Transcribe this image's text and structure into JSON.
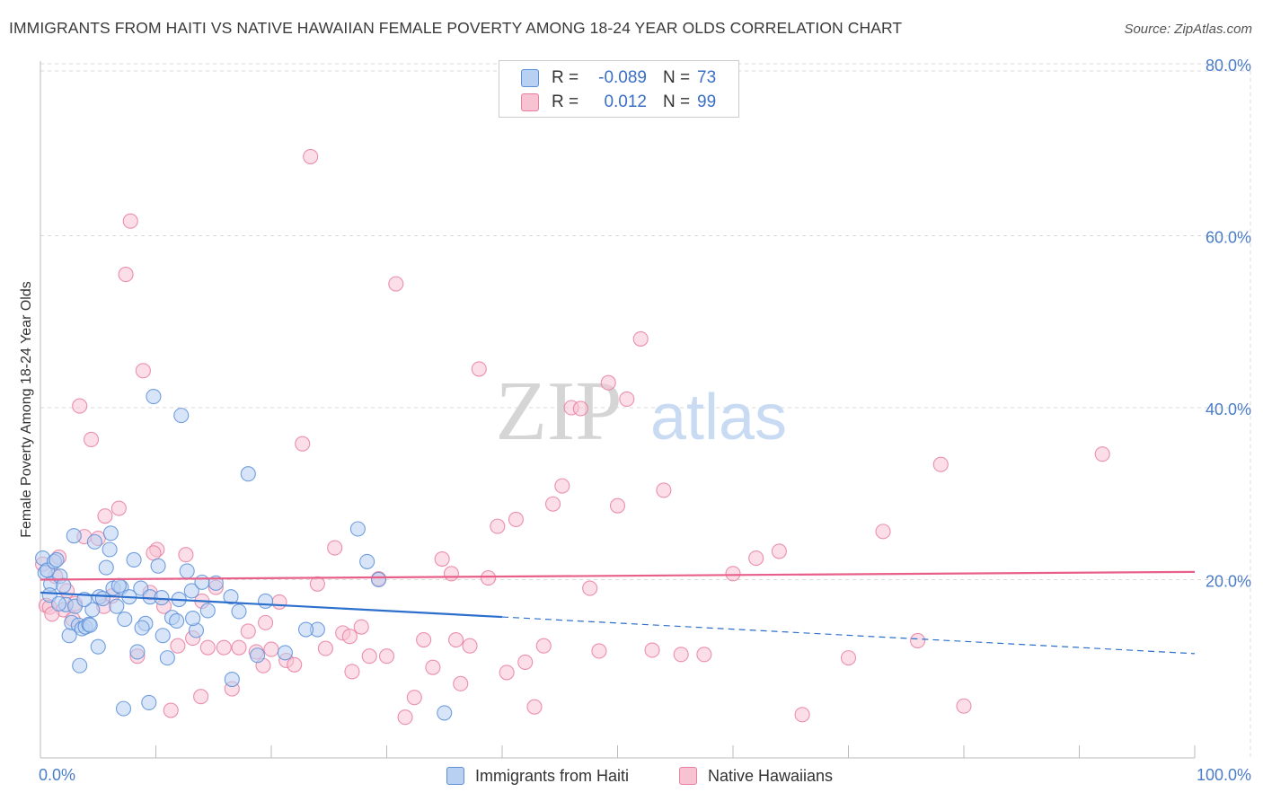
{
  "title": "IMMIGRANTS FROM HAITI VS NATIVE HAWAIIAN FEMALE POVERTY AMONG 18-24 YEAR OLDS CORRELATION CHART",
  "source": "Source: ZipAtlas.com",
  "watermark": {
    "zip": "ZIP",
    "atlas": "atlas"
  },
  "colors": {
    "blue_fill": "#b8d0f2",
    "blue_stroke": "#5b8fd8",
    "blue_line": "#2d6fcc",
    "pink_fill": "#f7c3d3",
    "pink_stroke": "#e77fa0",
    "pink_line": "#e8608a",
    "tick": "#4a7cc7",
    "grid": "#d9d9d9"
  },
  "legend": {
    "rows": [
      {
        "r_label": "R =",
        "r_value": "-0.089",
        "n_label": "N =",
        "n_value": "73"
      },
      {
        "r_label": "R =",
        "r_value": "0.012",
        "n_label": "N =",
        "n_value": "99"
      }
    ]
  },
  "bottom_legend": {
    "series1": "Immigrants from Haiti",
    "series2": "Native Hawaiians"
  },
  "chart_data": {
    "type": "scatter",
    "title": "IMMIGRANTS FROM HAITI VS NATIVE HAWAIIAN FEMALE POVERTY AMONG 18-24 YEAR OLDS CORRELATION CHART",
    "xlabel": "",
    "ylabel": "Female Poverty Among 18-24 Year Olds",
    "xlim": [
      0,
      100
    ],
    "ylim": [
      0,
      80
    ],
    "x_tick_labels": [
      "0.0%",
      "100.0%"
    ],
    "y_tick_labels": [
      "20.0%",
      "40.0%",
      "60.0%",
      "80.0%"
    ],
    "y_ticks": [
      20,
      40,
      60,
      80
    ],
    "grid": true,
    "legend_position": "top-center",
    "series": [
      {
        "name": "Immigrants from Haiti",
        "color": "blue",
        "trend": {
          "x0": 0,
          "y0": 18.5,
          "x1": 100,
          "y1": 11.4,
          "solid_until": 40
        },
        "points": [
          [
            0.2,
            22.5
          ],
          [
            0.4,
            20.8
          ],
          [
            0.6,
            21.1
          ],
          [
            0.9,
            19.5
          ],
          [
            1.2,
            22.1
          ],
          [
            1.4,
            22.3
          ],
          [
            1.7,
            20.4
          ],
          [
            2.0,
            19.3
          ],
          [
            2.2,
            17.1
          ],
          [
            2.5,
            13.5
          ],
          [
            2.7,
            15.0
          ],
          [
            3.0,
            16.9
          ],
          [
            3.3,
            14.7
          ],
          [
            3.6,
            14.3
          ],
          [
            3.9,
            14.5
          ],
          [
            4.2,
            14.8
          ],
          [
            4.5,
            16.5
          ],
          [
            4.7,
            24.4
          ],
          [
            5.1,
            18.0
          ],
          [
            5.4,
            17.8
          ],
          [
            5.7,
            21.4
          ],
          [
            6.0,
            23.5
          ],
          [
            6.3,
            19.0
          ],
          [
            6.6,
            16.9
          ],
          [
            7.0,
            19.1
          ],
          [
            7.3,
            15.4
          ],
          [
            7.7,
            18.0
          ],
          [
            8.1,
            22.3
          ],
          [
            8.4,
            11.6
          ],
          [
            8.7,
            19.0
          ],
          [
            9.1,
            14.9
          ],
          [
            9.5,
            18.0
          ],
          [
            9.8,
            41.3
          ],
          [
            10.2,
            21.6
          ],
          [
            10.6,
            13.5
          ],
          [
            11.0,
            10.9
          ],
          [
            11.4,
            15.6
          ],
          [
            11.8,
            15.2
          ],
          [
            12.2,
            39.1
          ],
          [
            12.7,
            21.0
          ],
          [
            13.1,
            18.7
          ],
          [
            13.5,
            14.1
          ],
          [
            14.0,
            19.7
          ],
          [
            14.5,
            16.4
          ],
          [
            15.2,
            19.6
          ],
          [
            16.5,
            18.0
          ],
          [
            17.2,
            16.3
          ],
          [
            18.0,
            32.3
          ],
          [
            18.8,
            11.2
          ],
          [
            19.5,
            17.5
          ],
          [
            21.2,
            11.5
          ],
          [
            24.0,
            14.2
          ],
          [
            27.5,
            25.9
          ],
          [
            28.3,
            22.1
          ],
          [
            29.3,
            20.0
          ],
          [
            3.4,
            10.0
          ],
          [
            7.2,
            5.0
          ],
          [
            9.4,
            5.7
          ],
          [
            0.8,
            18.2
          ],
          [
            1.6,
            17.2
          ],
          [
            2.9,
            25.1
          ],
          [
            4.3,
            14.7
          ],
          [
            5.0,
            12.2
          ],
          [
            6.8,
            19.3
          ],
          [
            8.8,
            14.4
          ],
          [
            10.5,
            17.9
          ],
          [
            12.0,
            17.7
          ],
          [
            13.2,
            15.5
          ],
          [
            16.6,
            8.4
          ],
          [
            23.0,
            14.2
          ],
          [
            35.0,
            4.5
          ],
          [
            3.8,
            17.7
          ],
          [
            6.1,
            25.4
          ]
        ]
      },
      {
        "name": "Native Hawaiians",
        "color": "pink",
        "trend": {
          "x0": 0,
          "y0": 20.0,
          "x1": 100,
          "y1": 20.9,
          "solid_until": 100
        },
        "points": [
          [
            0.2,
            21.8
          ],
          [
            0.5,
            17.0
          ],
          [
            0.8,
            16.8
          ],
          [
            1.3,
            20.4
          ],
          [
            1.6,
            22.6
          ],
          [
            2.0,
            16.5
          ],
          [
            2.3,
            18.7
          ],
          [
            2.8,
            15.4
          ],
          [
            3.4,
            40.2
          ],
          [
            3.8,
            25.0
          ],
          [
            4.4,
            36.3
          ],
          [
            5.0,
            24.8
          ],
          [
            5.6,
            27.4
          ],
          [
            6.2,
            18.1
          ],
          [
            6.8,
            28.3
          ],
          [
            7.4,
            55.5
          ],
          [
            7.8,
            61.7
          ],
          [
            8.4,
            11.1
          ],
          [
            8.9,
            44.3
          ],
          [
            9.5,
            18.5
          ],
          [
            10.1,
            23.5
          ],
          [
            10.7,
            16.9
          ],
          [
            11.3,
            4.8
          ],
          [
            11.9,
            12.3
          ],
          [
            12.6,
            22.9
          ],
          [
            13.2,
            13.2
          ],
          [
            13.9,
            6.4
          ],
          [
            14.5,
            12.1
          ],
          [
            15.2,
            19.1
          ],
          [
            15.9,
            12.1
          ],
          [
            16.6,
            7.3
          ],
          [
            17.2,
            12.1
          ],
          [
            18.0,
            14.0
          ],
          [
            18.7,
            11.6
          ],
          [
            19.3,
            10.0
          ],
          [
            20.0,
            11.9
          ],
          [
            20.7,
            17.4
          ],
          [
            21.3,
            10.6
          ],
          [
            22.0,
            10.1
          ],
          [
            22.7,
            35.8
          ],
          [
            23.4,
            69.2
          ],
          [
            24.0,
            19.5
          ],
          [
            24.7,
            12.0
          ],
          [
            25.5,
            23.7
          ],
          [
            26.2,
            13.8
          ],
          [
            27.0,
            9.3
          ],
          [
            27.8,
            14.5
          ],
          [
            28.5,
            11.1
          ],
          [
            29.3,
            20.1
          ],
          [
            30.0,
            11.1
          ],
          [
            30.8,
            54.4
          ],
          [
            31.6,
            4.0
          ],
          [
            32.4,
            6.3
          ],
          [
            33.2,
            13.0
          ],
          [
            34.0,
            9.8
          ],
          [
            34.8,
            22.4
          ],
          [
            35.6,
            20.7
          ],
          [
            36.4,
            7.9
          ],
          [
            37.2,
            12.3
          ],
          [
            38.0,
            44.5
          ],
          [
            38.8,
            20.2
          ],
          [
            39.6,
            26.2
          ],
          [
            40.4,
            9.2
          ],
          [
            41.2,
            27.0
          ],
          [
            42.0,
            10.4
          ],
          [
            42.8,
            5.2
          ],
          [
            43.6,
            12.3
          ],
          [
            44.4,
            28.8
          ],
          [
            45.2,
            30.9
          ],
          [
            46.0,
            40.0
          ],
          [
            46.8,
            39.9
          ],
          [
            47.6,
            19.0
          ],
          [
            48.4,
            11.7
          ],
          [
            49.2,
            42.9
          ],
          [
            50.0,
            28.6
          ],
          [
            50.8,
            41.0
          ],
          [
            52.0,
            48.0
          ],
          [
            53.0,
            11.8
          ],
          [
            54.0,
            30.4
          ],
          [
            55.5,
            11.3
          ],
          [
            57.5,
            11.3
          ],
          [
            60.0,
            20.7
          ],
          [
            62.0,
            22.5
          ],
          [
            64.0,
            23.3
          ],
          [
            66.0,
            4.3
          ],
          [
            70.0,
            10.9
          ],
          [
            73.0,
            25.6
          ],
          [
            76.0,
            12.9
          ],
          [
            78.0,
            33.4
          ],
          [
            80.0,
            5.3
          ],
          [
            92.0,
            34.6
          ],
          [
            1.0,
            16.0
          ],
          [
            3.0,
            17.2
          ],
          [
            5.5,
            16.9
          ],
          [
            9.8,
            23.1
          ],
          [
            14.0,
            17.5
          ],
          [
            19.5,
            15.0
          ],
          [
            26.8,
            13.4
          ],
          [
            36.0,
            13.0
          ]
        ]
      }
    ]
  }
}
